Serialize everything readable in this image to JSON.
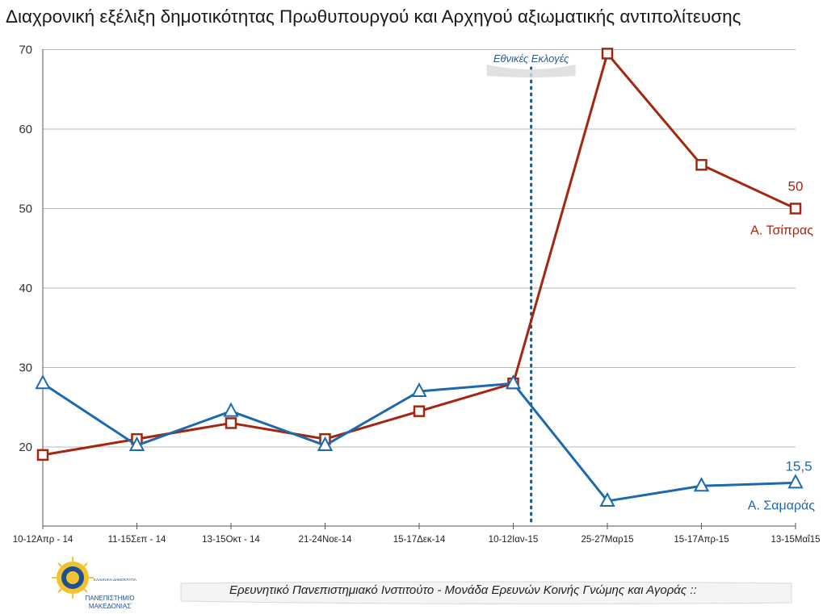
{
  "title": "Διαχρονική εξέλιξη δημοτικότητας Πρωθυπουργού και Αρχηγού αξιωματικής αντιπολίτευσης",
  "footer": "Ερευνητικό Πανεπιστημιακό Ινστιτούτο - Μονάδα Ερευνών Κοινής Γνώμης και Αγοράς ::",
  "logo": {
    "top_text": "ΕΛΛΗΝΙΚΗ ΔΗΜΟΚΡΑΤΙΑ",
    "name_line1": "ΠΑΝΕΠΙΣΤΗΜΙΟ",
    "name_line2": "ΜΑΚΕΔΟΝΙΑΣ"
  },
  "chart_data": {
    "type": "line",
    "categories": [
      "10-12Απρ - 14",
      "11-15Σεπ - 14",
      "13-15Οκτ - 14",
      "21-24Νοε-14",
      "15-17Δεκ-14",
      "10-12Ιαν-15",
      "25-27Μαρ15",
      "15-17Απρ-15",
      "13-15Μαΐ15"
    ],
    "y_ticks": [
      20,
      30,
      40,
      50,
      60,
      70
    ],
    "ylim": [
      10,
      70
    ],
    "grid": "horizontal",
    "series": [
      {
        "name": "Α. Τσίπρας",
        "marker": "square",
        "color": "#a3260f",
        "values": [
          19,
          21,
          23,
          21,
          24.5,
          28,
          69.5,
          55.5,
          50
        ],
        "end_label": "50"
      },
      {
        "name": "Α. Σαμαράς",
        "marker": "triangle",
        "color": "#1e69ad",
        "values": [
          28,
          20.2,
          24.5,
          20.2,
          27,
          28,
          13.2,
          15.1,
          15.5
        ],
        "end_label": "15,5"
      }
    ],
    "annotations": [
      {
        "text": "Εθνικές Εκλογές",
        "between": [
          "10-12Ιαν-15",
          "25-27Μαρ15"
        ],
        "style": "dotted vertical line"
      }
    ]
  }
}
